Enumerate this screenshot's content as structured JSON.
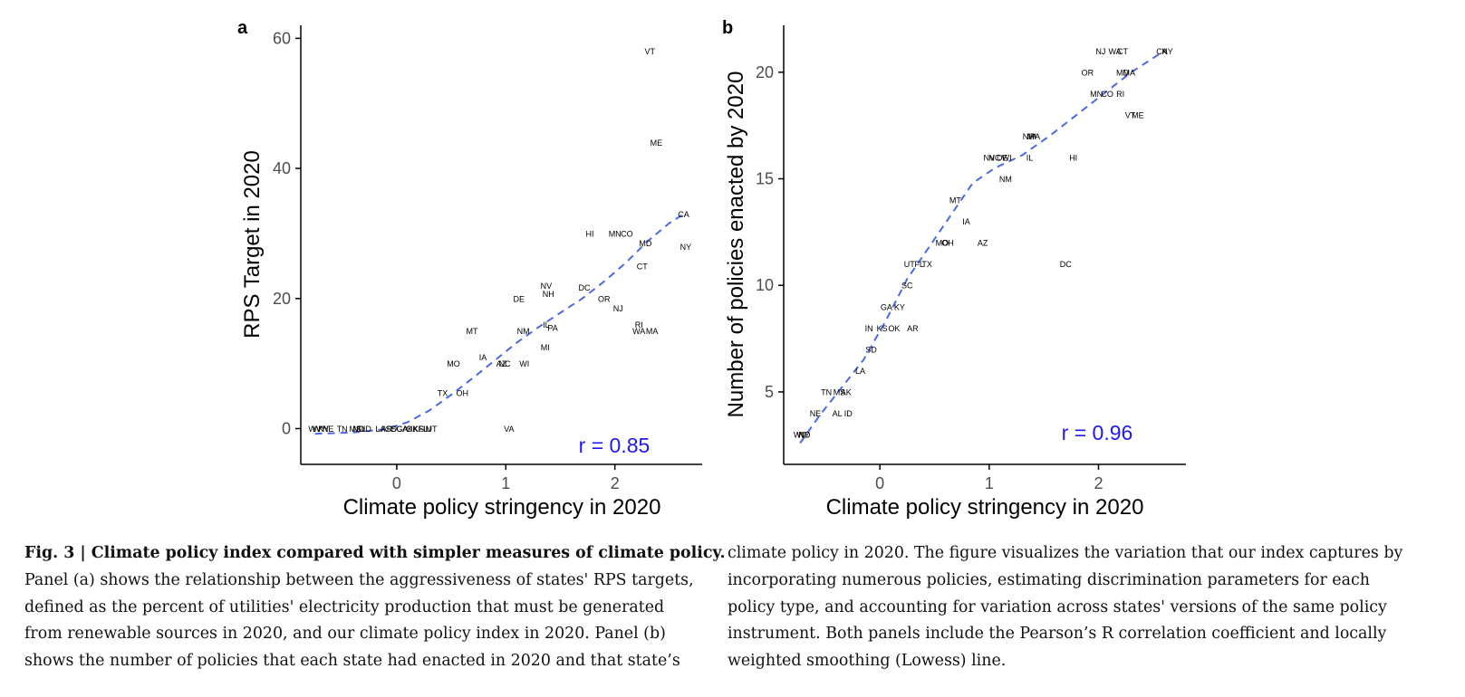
{
  "chart_data": [
    {
      "panel": "a",
      "type": "scatter",
      "xlabel": "Climate policy stringency in 2020",
      "ylabel": "RPS Target in 2020",
      "xlim": [
        -0.88,
        2.8
      ],
      "ylim": [
        -5.5,
        62
      ],
      "xticks": [
        0,
        1,
        2
      ],
      "yticks": [
        0,
        20,
        40,
        60
      ],
      "correlation_label": "r = 0.85",
      "points": [
        {
          "label": "WV",
          "x": -0.75,
          "y": 0
        },
        {
          "label": "WY",
          "x": -0.71,
          "y": 0
        },
        {
          "label": "KY",
          "x": -0.67,
          "y": 0
        },
        {
          "label": "NE",
          "x": -0.63,
          "y": 0
        },
        {
          "label": "TN",
          "x": -0.5,
          "y": 0
        },
        {
          "label": "MS",
          "x": -0.38,
          "y": 0
        },
        {
          "label": "ND",
          "x": -0.35,
          "y": 0
        },
        {
          "label": "AL",
          "x": -0.33,
          "y": 0
        },
        {
          "label": "ID",
          "x": -0.27,
          "y": 0
        },
        {
          "label": "LA",
          "x": -0.15,
          "y": 0
        },
        {
          "label": "AR",
          "x": -0.09,
          "y": 0
        },
        {
          "label": "SD",
          "x": -0.05,
          "y": 0
        },
        {
          "label": "SC",
          "x": 0.0,
          "y": 0
        },
        {
          "label": "GA",
          "x": 0.05,
          "y": 0
        },
        {
          "label": "AK",
          "x": 0.1,
          "y": 0
        },
        {
          "label": "OK",
          "x": 0.14,
          "y": 0
        },
        {
          "label": "KS",
          "x": 0.2,
          "y": 0
        },
        {
          "label": "FL",
          "x": 0.24,
          "y": 0
        },
        {
          "label": "IN",
          "x": 0.28,
          "y": 0
        },
        {
          "label": "UT",
          "x": 0.32,
          "y": 0
        },
        {
          "label": "VA",
          "x": 1.03,
          "y": 0
        },
        {
          "label": "TX",
          "x": 0.42,
          "y": 5.5
        },
        {
          "label": "OH",
          "x": 0.6,
          "y": 5.5
        },
        {
          "label": "MO",
          "x": 0.52,
          "y": 10
        },
        {
          "label": "IA",
          "x": 0.79,
          "y": 11
        },
        {
          "label": "AZ",
          "x": 0.96,
          "y": 10
        },
        {
          "label": "NC",
          "x": 0.99,
          "y": 10
        },
        {
          "label": "WI",
          "x": 1.17,
          "y": 10
        },
        {
          "label": "MT",
          "x": 0.69,
          "y": 15
        },
        {
          "label": "NM",
          "x": 1.16,
          "y": 15
        },
        {
          "label": "MI",
          "x": 1.36,
          "y": 12.5
        },
        {
          "label": "IL",
          "x": 1.37,
          "y": 16
        },
        {
          "label": "PA",
          "x": 1.43,
          "y": 15.5
        },
        {
          "label": "DE",
          "x": 1.12,
          "y": 20
        },
        {
          "label": "NV",
          "x": 1.37,
          "y": 22
        },
        {
          "label": "NH",
          "x": 1.39,
          "y": 20.7
        },
        {
          "label": "DC",
          "x": 1.72,
          "y": 21.7
        },
        {
          "label": "OR",
          "x": 1.9,
          "y": 20
        },
        {
          "label": "NJ",
          "x": 2.03,
          "y": 18.5
        },
        {
          "label": "HI",
          "x": 1.77,
          "y": 30
        },
        {
          "label": "MN",
          "x": 2.0,
          "y": 30
        },
        {
          "label": "CO",
          "x": 2.11,
          "y": 30
        },
        {
          "label": "MD",
          "x": 2.28,
          "y": 28.5
        },
        {
          "label": "CT",
          "x": 2.25,
          "y": 25
        },
        {
          "label": "RI",
          "x": 2.22,
          "y": 16
        },
        {
          "label": "WA",
          "x": 2.22,
          "y": 15
        },
        {
          "label": "MA",
          "x": 2.34,
          "y": 15
        },
        {
          "label": "CA",
          "x": 2.63,
          "y": 33
        },
        {
          "label": "NY",
          "x": 2.65,
          "y": 28
        },
        {
          "label": "ME",
          "x": 2.38,
          "y": 44
        },
        {
          "label": "VT",
          "x": 2.32,
          "y": 58
        }
      ],
      "smooth_line": [
        {
          "x": -0.75,
          "y": -0.8
        },
        {
          "x": -0.4,
          "y": -0.6
        },
        {
          "x": -0.1,
          "y": -0.1
        },
        {
          "x": 0.1,
          "y": 1.0
        },
        {
          "x": 0.3,
          "y": 2.8
        },
        {
          "x": 0.5,
          "y": 5.2
        },
        {
          "x": 0.7,
          "y": 7.8
        },
        {
          "x": 0.9,
          "y": 10.5
        },
        {
          "x": 1.1,
          "y": 13.2
        },
        {
          "x": 1.3,
          "y": 15.6
        },
        {
          "x": 1.5,
          "y": 17.8
        },
        {
          "x": 1.7,
          "y": 20.0
        },
        {
          "x": 1.9,
          "y": 22.6
        },
        {
          "x": 2.1,
          "y": 25.5
        },
        {
          "x": 2.3,
          "y": 28.8
        },
        {
          "x": 2.5,
          "y": 31.6
        },
        {
          "x": 2.65,
          "y": 33.2
        }
      ]
    },
    {
      "panel": "b",
      "type": "scatter",
      "xlabel": "Climate policy stringency in 2020",
      "ylabel": "Number of policies enacted by 2020",
      "xlim": [
        -0.88,
        2.8
      ],
      "ylim": [
        1.6,
        22.2
      ],
      "xticks": [
        0,
        1,
        2
      ],
      "yticks": [
        5,
        10,
        15,
        20
      ],
      "correlation_label": "r = 0.96",
      "points": [
        {
          "label": "WV",
          "x": -0.73,
          "y": 3
        },
        {
          "label": "WY",
          "x": -0.7,
          "y": 3
        },
        {
          "label": "ND",
          "x": -0.69,
          "y": 3
        },
        {
          "label": "NE",
          "x": -0.59,
          "y": 4
        },
        {
          "label": "TN",
          "x": -0.49,
          "y": 5
        },
        {
          "label": "MS",
          "x": -0.37,
          "y": 5
        },
        {
          "label": "AK",
          "x": -0.31,
          "y": 5
        },
        {
          "label": "AL",
          "x": -0.39,
          "y": 4
        },
        {
          "label": "ID",
          "x": -0.29,
          "y": 4
        },
        {
          "label": "LA",
          "x": -0.18,
          "y": 6
        },
        {
          "label": "SD",
          "x": -0.08,
          "y": 7
        },
        {
          "label": "IN",
          "x": -0.1,
          "y": 8
        },
        {
          "label": "KS",
          "x": 0.02,
          "y": 8
        },
        {
          "label": "OK",
          "x": 0.13,
          "y": 8
        },
        {
          "label": "AR",
          "x": 0.3,
          "y": 8
        },
        {
          "label": "GA",
          "x": 0.06,
          "y": 9
        },
        {
          "label": "KY",
          "x": 0.18,
          "y": 9
        },
        {
          "label": "SC",
          "x": 0.25,
          "y": 10
        },
        {
          "label": "UT",
          "x": 0.27,
          "y": 11
        },
        {
          "label": "FL",
          "x": 0.36,
          "y": 11
        },
        {
          "label": "TX",
          "x": 0.43,
          "y": 11
        },
        {
          "label": "MO",
          "x": 0.57,
          "y": 12
        },
        {
          "label": "OH",
          "x": 0.62,
          "y": 12
        },
        {
          "label": "AZ",
          "x": 0.94,
          "y": 12
        },
        {
          "label": "IA",
          "x": 0.79,
          "y": 13
        },
        {
          "label": "MT",
          "x": 0.69,
          "y": 14
        },
        {
          "label": "NV",
          "x": 1.0,
          "y": 16
        },
        {
          "label": "NC",
          "x": 1.05,
          "y": 16
        },
        {
          "label": "DE",
          "x": 1.12,
          "y": 16
        },
        {
          "label": "WI",
          "x": 1.16,
          "y": 16
        },
        {
          "label": "IL",
          "x": 1.37,
          "y": 16
        },
        {
          "label": "NM",
          "x": 1.15,
          "y": 15
        },
        {
          "label": "NH",
          "x": 1.36,
          "y": 17
        },
        {
          "label": "MI",
          "x": 1.39,
          "y": 17
        },
        {
          "label": "PA",
          "x": 1.42,
          "y": 17
        },
        {
          "label": "HI",
          "x": 1.77,
          "y": 16
        },
        {
          "label": "DC",
          "x": 1.7,
          "y": 11
        },
        {
          "label": "MN",
          "x": 1.98,
          "y": 19
        },
        {
          "label": "CO",
          "x": 2.08,
          "y": 19
        },
        {
          "label": "RI",
          "x": 2.2,
          "y": 19
        },
        {
          "label": "OR",
          "x": 1.9,
          "y": 20
        },
        {
          "label": "MD",
          "x": 2.22,
          "y": 20
        },
        {
          "label": "MA",
          "x": 2.28,
          "y": 20
        },
        {
          "label": "VT",
          "x": 2.29,
          "y": 18
        },
        {
          "label": "ME",
          "x": 2.36,
          "y": 18
        },
        {
          "label": "NJ",
          "x": 2.02,
          "y": 21
        },
        {
          "label": "WA",
          "x": 2.15,
          "y": 21
        },
        {
          "label": "CT",
          "x": 2.22,
          "y": 21
        },
        {
          "label": "CA",
          "x": 2.58,
          "y": 21
        },
        {
          "label": "NY",
          "x": 2.63,
          "y": 21
        }
      ],
      "smooth_line": [
        {
          "x": -0.73,
          "y": 2.6
        },
        {
          "x": -0.55,
          "y": 3.9
        },
        {
          "x": -0.35,
          "y": 5.2
        },
        {
          "x": -0.15,
          "y": 6.5
        },
        {
          "x": 0.05,
          "y": 8.3
        },
        {
          "x": 0.25,
          "y": 10.3
        },
        {
          "x": 0.45,
          "y": 11.8
        },
        {
          "x": 0.65,
          "y": 13.3
        },
        {
          "x": 0.85,
          "y": 14.8
        },
        {
          "x": 1.05,
          "y": 15.5
        },
        {
          "x": 1.3,
          "y": 16.1
        },
        {
          "x": 1.55,
          "y": 17.0
        },
        {
          "x": 1.8,
          "y": 18.0
        },
        {
          "x": 2.05,
          "y": 19.0
        },
        {
          "x": 2.3,
          "y": 20.0
        },
        {
          "x": 2.6,
          "y": 21.0
        }
      ]
    }
  ],
  "caption": {
    "left_head": "Fig. 3 | Climate policy index compared with simpler measures of climate policy.",
    "left_lines": [
      "Panel (a) shows the relationship between the aggressiveness of states' RPS targets,",
      "defined as the percent of utilities' electricity production that must be generated",
      "from renewable sources in 2020, and our climate policy index in 2020. Panel (b)",
      "shows the number of policies that each state had enacted in 2020 and that state’s"
    ],
    "right_lines": [
      "climate policy in 2020. The figure visualizes the variation that our index captures by",
      "incorporating numerous policies, estimating discrimination parameters for each",
      "policy type, and accounting for variation across states' versions of the same policy",
      "instrument. Both panels include the Pearson’s R correlation coefficient and locally",
      "weighted smoothing (Lowess) line."
    ]
  },
  "colors": {
    "smooth_line": "#4a68e8",
    "correlation_text": "#1f18f0",
    "axis": "#000000",
    "tick_label": "#4d4d4d"
  }
}
